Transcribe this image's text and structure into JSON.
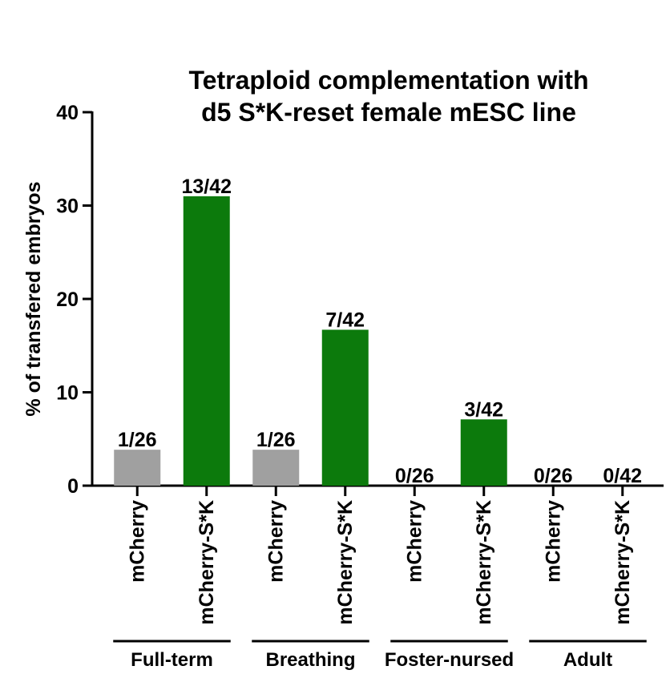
{
  "chart_data": {
    "type": "bar",
    "title_lines": [
      "Tetraploid complementation with",
      "d5 S*K-reset female mESC line"
    ],
    "ylabel": "% of transfered embryos",
    "ylim": [
      0,
      40
    ],
    "yticks": [
      0,
      10,
      20,
      30,
      40
    ],
    "categories": [
      "mCherry",
      "mCherry-S*K",
      "mCherry",
      "mCherry-S*K",
      "mCherry",
      "mCherry-S*K",
      "mCherry",
      "mCherry-S*K"
    ],
    "values": [
      3.85,
      31.0,
      3.85,
      16.7,
      0,
      7.1,
      0,
      0
    ],
    "data_labels": [
      "1/26",
      "13/42",
      "1/26",
      "7/42",
      "0/26",
      "3/42",
      "0/26",
      "0/42"
    ],
    "groups": [
      "Full-term",
      "Breathing",
      "Foster-nursed",
      "Adult"
    ],
    "bar_colors": [
      "#a0a0a0",
      "#0c7a0c",
      "#a0a0a0",
      "#0c7a0c",
      "#a0a0a0",
      "#0c7a0c",
      "#a0a0a0",
      "#0c7a0c"
    ]
  }
}
